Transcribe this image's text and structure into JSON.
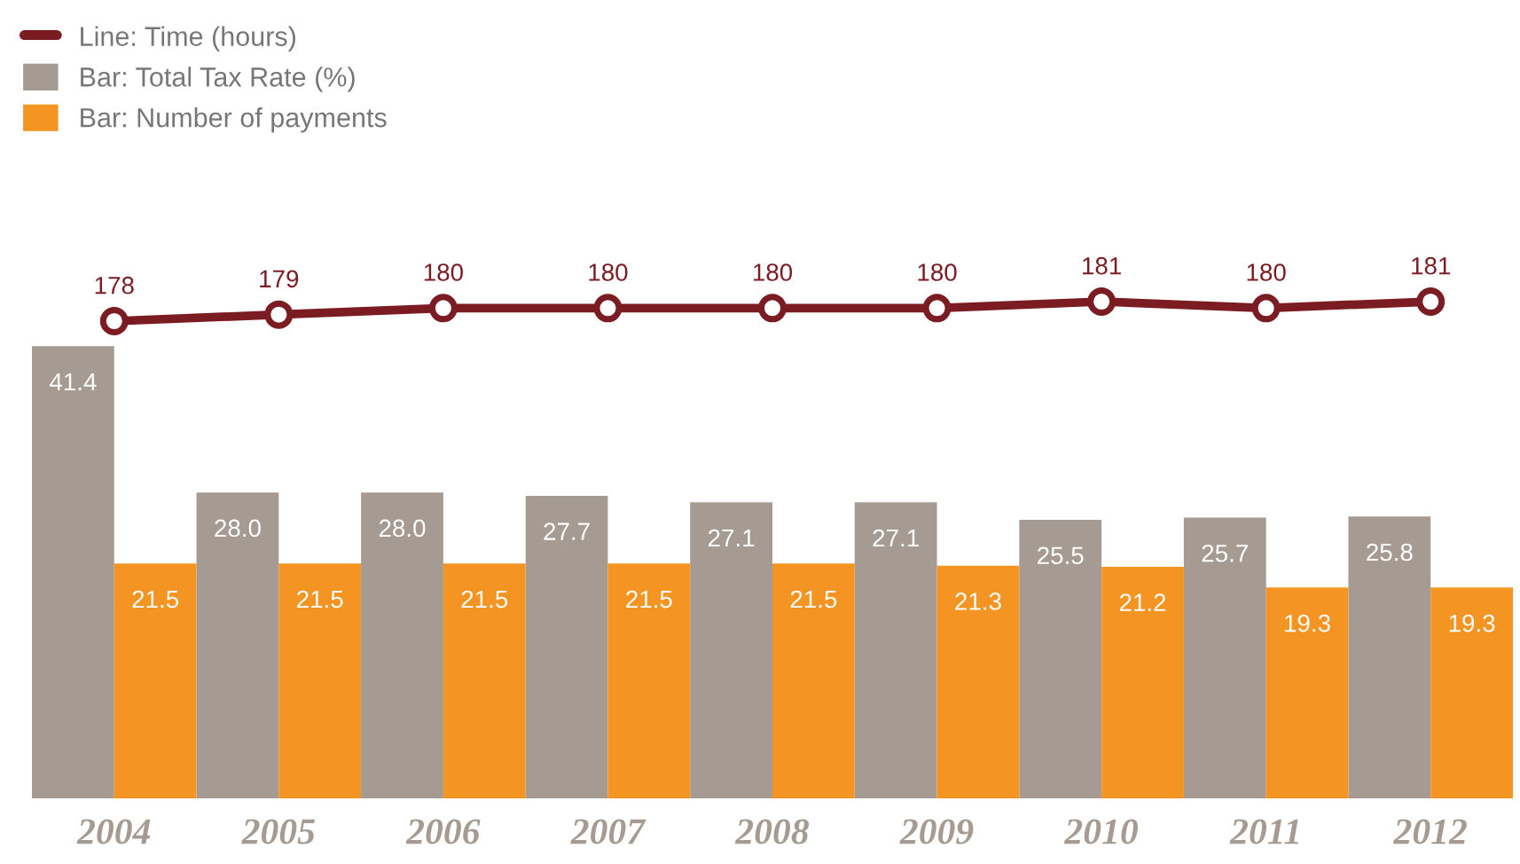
{
  "chart_data": [
    {
      "type": "line",
      "categories": [
        "2004",
        "2005",
        "2006",
        "2007",
        "2008",
        "2009",
        "2010",
        "2011",
        "2012"
      ],
      "series": [
        {
          "name": "Line: Time (hours)",
          "color": "#7b1c23",
          "values": [
            178,
            179,
            180,
            180,
            180,
            180,
            181,
            180,
            181
          ]
        }
      ],
      "data_labels": true,
      "marker": "circle",
      "legend": "top left",
      "tick_labels": false
    },
    {
      "type": "bar",
      "categories": [
        "2004",
        "2005",
        "2006",
        "2007",
        "2008",
        "2009",
        "2010",
        "2011",
        "2012"
      ],
      "series": [
        {
          "name": "Bar: Total Tax Rate (%)",
          "color": "#a59b92",
          "values": [
            41.4,
            28.0,
            28.0,
            27.7,
            27.1,
            27.1,
            25.5,
            25.7,
            25.8
          ],
          "value_labels": [
            "41.4",
            "28.0",
            "28.0",
            "27.7",
            "27.1",
            "27.1",
            "25.5",
            "25.7",
            "25.8"
          ]
        },
        {
          "name": "Bar: Number of payments",
          "color": "#f39423",
          "values": [
            21.5,
            21.5,
            21.5,
            21.5,
            21.5,
            21.3,
            21.2,
            19.3,
            19.3
          ],
          "value_labels": [
            "21.5",
            "21.5",
            "21.5",
            "21.5",
            "21.5",
            "21.3",
            "21.2",
            "19.3",
            "19.3"
          ]
        }
      ],
      "legend": "top left",
      "tick_labels": "x"
    }
  ]
}
